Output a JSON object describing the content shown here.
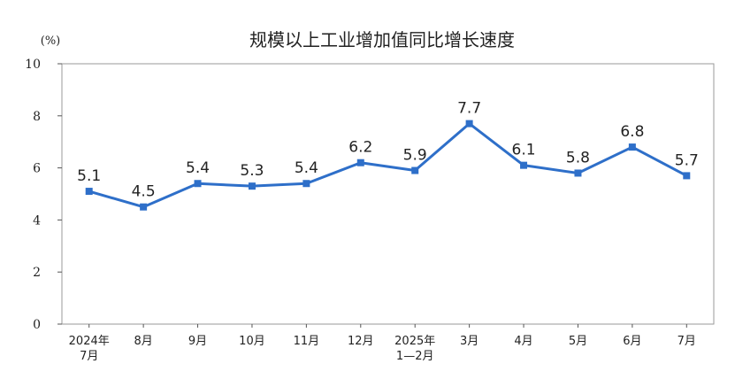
{
  "chart_data": {
    "type": "line",
    "title": "规模以上工业增加值同比增长速度",
    "unit_label": "(%)",
    "categories": [
      [
        "2024年",
        "7月"
      ],
      [
        "8月"
      ],
      [
        "9月"
      ],
      [
        "10月"
      ],
      [
        "11月"
      ],
      [
        "12月"
      ],
      [
        "2025年",
        "1—2月"
      ],
      [
        "3月"
      ],
      [
        "4月"
      ],
      [
        "5月"
      ],
      [
        "6月"
      ],
      [
        "7月"
      ]
    ],
    "values": [
      5.1,
      4.5,
      5.4,
      5.3,
      5.4,
      6.2,
      5.9,
      7.7,
      6.1,
      5.8,
      6.8,
      5.7
    ],
    "value_labels": [
      "5.1",
      "4.5",
      "5.4",
      "5.3",
      "5.4",
      "6.2",
      "5.9",
      "7.7",
      "6.1",
      "5.8",
      "6.8",
      "5.7"
    ],
    "yticks": [
      "0",
      "2",
      "4",
      "6",
      "8",
      "10"
    ],
    "ylim": [
      0,
      10
    ],
    "grid": false,
    "legend": "none",
    "colors": {
      "line": "#2e6fc9",
      "marker": "#2e6fc9",
      "axis": "#555555",
      "frame": "#9a9a9a",
      "text": "#222222"
    }
  }
}
